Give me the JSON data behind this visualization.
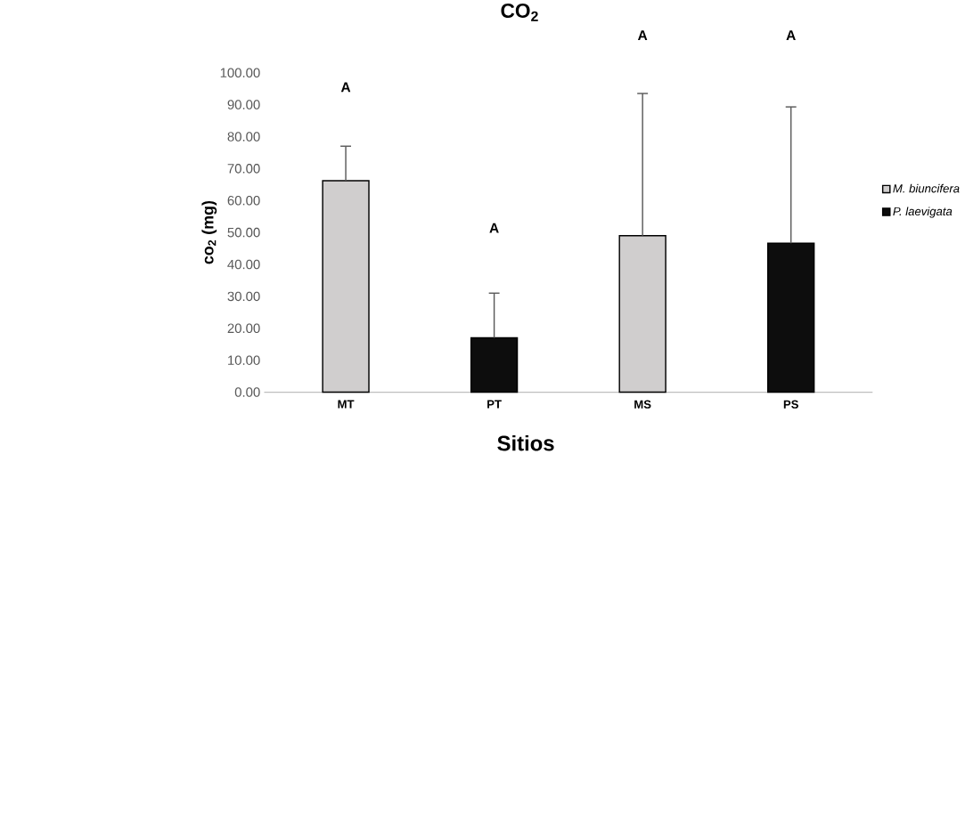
{
  "chart_data": {
    "type": "bar",
    "title": "CO$_{2}$",
    "xlabel": "Sitios",
    "ylabel": "co$_{2}$ (mg)",
    "categories": [
      "MT",
      "PT",
      "MS",
      "PS"
    ],
    "series": [
      {
        "name": "M. biuncifera",
        "color": "#d0cece",
        "values": [
          66.2,
          null,
          49,
          null
        ],
        "errors": [
          10.8,
          null,
          44.5,
          null
        ]
      },
      {
        "name": "P. laevigata",
        "color": "#0d0d0d",
        "values": [
          null,
          17,
          null,
          46.6
        ],
        "errors": [
          null,
          14,
          null,
          42.7
        ]
      }
    ],
    "ylim": [
      0,
      100
    ],
    "yticks": [
      {
        "value": 0,
        "label": "0.00"
      },
      {
        "value": 10,
        "label": "10.00"
      },
      {
        "value": 20,
        "label": "20.00"
      },
      {
        "value": 30,
        "label": "30.00"
      },
      {
        "value": 40,
        "label": "40.00"
      },
      {
        "value": 50,
        "label": "50.00"
      },
      {
        "value": 60,
        "label": "60.00"
      },
      {
        "value": 70,
        "label": "70.00"
      },
      {
        "value": 80,
        "label": "80.00"
      },
      {
        "value": 90,
        "label": "90.00"
      },
      {
        "value": 100,
        "label": "100.00"
      }
    ],
    "annotations": [
      "A",
      "A",
      "A",
      "A"
    ],
    "legend": "right",
    "grid": false
  }
}
